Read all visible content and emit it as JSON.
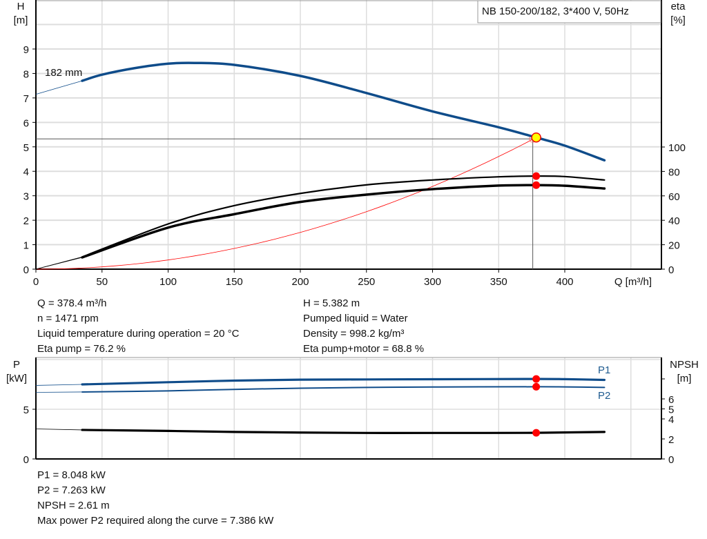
{
  "chart_data": [
    {
      "type": "line",
      "title": "NB 150-200/182, 3*400 V, 50Hz",
      "xlabel": "Q [m³/h]",
      "ylabel": "H\n[m]",
      "y2label": "eta\n[%]",
      "xlim": [
        0,
        470
      ],
      "ylim": [
        0,
        11
      ],
      "y2lim": [
        0,
        220
      ],
      "xticks": [
        0,
        50,
        100,
        150,
        200,
        250,
        300,
        350,
        400
      ],
      "yticks": [
        0,
        1,
        2,
        3,
        4,
        5,
        6,
        7,
        8,
        9
      ],
      "y2ticks": [
        0,
        20,
        40,
        60,
        80,
        100
      ],
      "grid": true,
      "series": [
        {
          "name": "182 mm",
          "axis": "H",
          "color": "#0f4c8a",
          "extrapolated": [
            [
              0,
              7.15
            ],
            [
              35,
              7.7
            ]
          ],
          "points": [
            [
              35,
              7.7
            ],
            [
              50,
              7.95
            ],
            [
              75,
              8.22
            ],
            [
              100,
              8.4
            ],
            [
              120,
              8.43
            ],
            [
              150,
              8.35
            ],
            [
              200,
              7.9
            ],
            [
              250,
              7.2
            ],
            [
              300,
              6.45
            ],
            [
              350,
              5.8
            ],
            [
              378.4,
              5.382
            ],
            [
              400,
              5.05
            ],
            [
              430,
              4.45
            ]
          ]
        },
        {
          "axis": "eta",
          "color": "#000000",
          "extrapolated": [
            [
              0,
              0
            ],
            [
              35,
              10
            ]
          ],
          "points": [
            [
              35,
              10
            ],
            [
              100,
              37
            ],
            [
              150,
              52
            ],
            [
              200,
              62
            ],
            [
              250,
              69
            ],
            [
              300,
              73
            ],
            [
              350,
              75.6
            ],
            [
              378.4,
              76.2
            ],
            [
              400,
              75.8
            ],
            [
              430,
              73
            ]
          ]
        },
        {
          "axis": "eta",
          "color": "#000000",
          "extrapolated": [
            [
              0,
              0
            ],
            [
              35,
              9.6
            ]
          ],
          "points": [
            [
              35,
              9.6
            ],
            [
              100,
              34
            ],
            [
              150,
              45
            ],
            [
              200,
              55
            ],
            [
              250,
              61
            ],
            [
              300,
              65.5
            ],
            [
              350,
              68.4
            ],
            [
              378.4,
              68.8
            ],
            [
              400,
              68.3
            ],
            [
              430,
              66
            ]
          ]
        }
      ],
      "system_curve_color": "#ff0000",
      "operating_point": {
        "Q": 378.4,
        "H": 5.382,
        "eta_pump": 76.2,
        "eta_total": 68.8
      }
    },
    {
      "type": "line",
      "ylabel": "P\n[kW]",
      "y2label": "NPSH\n[m]",
      "xlim": [
        0,
        470
      ],
      "ylim": [
        0,
        10.2
      ],
      "y2lim": [
        0,
        10.1
      ],
      "yticks": [
        0,
        5
      ],
      "y2ticks": [
        0,
        2,
        4,
        5,
        6,
        8
      ],
      "y2ticklabels": [
        "0",
        "2",
        "4",
        "5",
        "6",
        ""
      ],
      "grid": true,
      "series": [
        {
          "name": "P1",
          "axis": "P",
          "color": "#0f4c8a",
          "extrapolated": [
            [
              0,
              7.4
            ],
            [
              35,
              7.5
            ]
          ],
          "points": [
            [
              35,
              7.5
            ],
            [
              100,
              7.72
            ],
            [
              150,
              7.88
            ],
            [
              200,
              7.98
            ],
            [
              250,
              8.0
            ],
            [
              300,
              8.02
            ],
            [
              378.4,
              8.048
            ],
            [
              400,
              8.03
            ],
            [
              430,
              7.95
            ]
          ]
        },
        {
          "name": "P2",
          "axis": "P",
          "color": "#0f4c8a",
          "extrapolated": [
            [
              0,
              6.7
            ],
            [
              35,
              6.74
            ]
          ],
          "points": [
            [
              35,
              6.74
            ],
            [
              100,
              6.85
            ],
            [
              150,
              7.0
            ],
            [
              200,
              7.12
            ],
            [
              250,
              7.2
            ],
            [
              300,
              7.24
            ],
            [
              378.4,
              7.263
            ],
            [
              400,
              7.25
            ],
            [
              430,
              7.2
            ]
          ]
        },
        {
          "axis": "NPSH",
          "color": "#000000",
          "extrapolated": [
            [
              0,
              3.0
            ],
            [
              35,
              2.9
            ]
          ],
          "points": [
            [
              35,
              2.9
            ],
            [
              100,
              2.8
            ],
            [
              150,
              2.7
            ],
            [
              200,
              2.64
            ],
            [
              250,
              2.6
            ],
            [
              300,
              2.6
            ],
            [
              378.4,
              2.61
            ],
            [
              430,
              2.7
            ]
          ]
        }
      ]
    }
  ],
  "readout_top": {
    "q": "Q = 378.4 m³/h",
    "n": "n = 1471 rpm",
    "temp": "Liquid temperature during operation = 20 °C",
    "eta_pump": "Eta pump = 76.2 %",
    "h": "H = 5.382 m",
    "liquid": "Pumped liquid = Water",
    "density": "Density = 998.2 kg/m³",
    "eta_total": "Eta pump+motor = 68.8 %"
  },
  "readout_bottom": {
    "p1": "P1 = 8.048 kW",
    "p2": "P2 = 7.263 kW",
    "npsh": "NPSH = 2.61 m",
    "max_p2": "Max power P2 required along the curve = 7.386 kW"
  }
}
